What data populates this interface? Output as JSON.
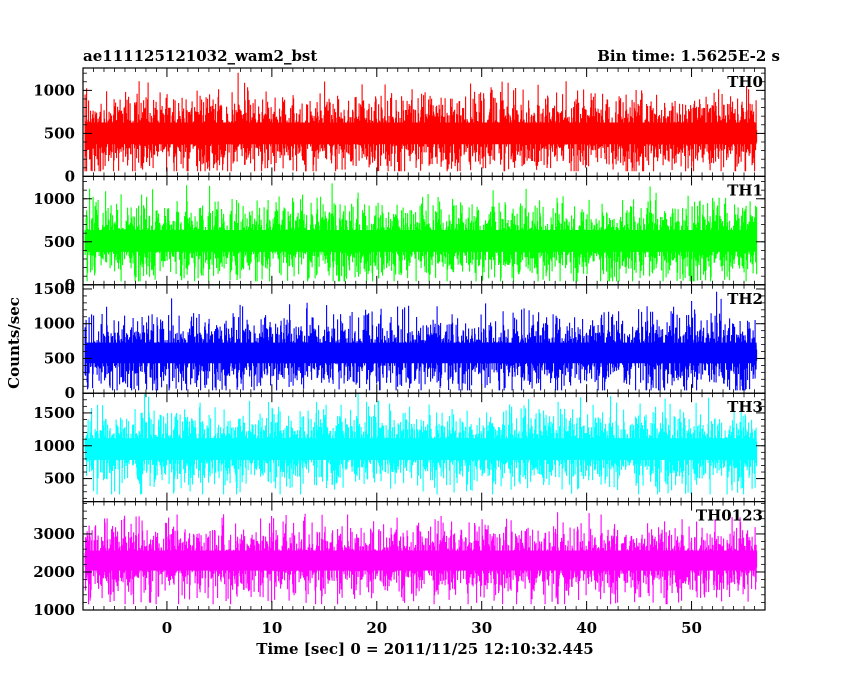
{
  "chart_data": {
    "type": "line",
    "title": "ae111125121032_wam2_bst",
    "bin_time": "Bin time: 1.5625E-2 s",
    "xlabel": "Time [sec] 0 = 2011/11/25 12:10:32.445",
    "ylabel": "Counts/sec",
    "xlim": [
      -8,
      57
    ],
    "x_data_range": [
      -7.8,
      56.2
    ],
    "x_ticks": [
      0,
      10,
      20,
      30,
      40,
      50
    ],
    "x_tick_labels": [
      "0",
      "10",
      "20",
      "30",
      "40",
      "50"
    ],
    "grid": false,
    "legend": "none",
    "panels": [
      {
        "name": "TH0",
        "color": "#ff0000",
        "ylim": [
          0,
          1260
        ],
        "y_ticks": [
          0,
          500,
          1000
        ],
        "y_tick_labels": [
          "0",
          "500",
          "1000"
        ],
        "mean": 500,
        "spread": 230,
        "min": 60,
        "max": 1250
      },
      {
        "name": "TH1",
        "color": "#00ff00",
        "ylim": [
          0,
          1260
        ],
        "y_ticks": [
          0,
          500,
          1000
        ],
        "y_tick_labels": [
          "0",
          "500",
          "1000"
        ],
        "mean": 510,
        "spread": 230,
        "min": 40,
        "max": 1220
      },
      {
        "name": "TH2",
        "color": "#0000ff",
        "ylim": [
          0,
          1560
        ],
        "y_ticks": [
          0,
          500,
          1000,
          1500
        ],
        "y_tick_labels": [
          "0",
          "500",
          "1000",
          "1500"
        ],
        "mean": 580,
        "spread": 270,
        "min": 40,
        "max": 1500
      },
      {
        "name": "TH3",
        "color": "#00ffff",
        "ylim": [
          150,
          1800
        ],
        "y_ticks": [
          500,
          1000,
          1500
        ],
        "y_tick_labels": [
          "500",
          "1000",
          "1500"
        ],
        "mean": 950,
        "spread": 300,
        "min": 260,
        "max": 1790
      },
      {
        "name": "TH0123",
        "color": "#ff00ff",
        "ylim": [
          1000,
          3850
        ],
        "y_ticks": [
          1000,
          2000,
          3000
        ],
        "y_tick_labels": [
          "1000",
          "2000",
          "3000"
        ],
        "mean": 2300,
        "spread": 480,
        "min": 1150,
        "max": 3800
      }
    ]
  }
}
